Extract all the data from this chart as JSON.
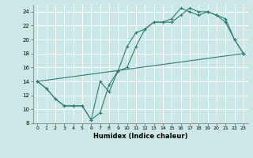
{
  "xlabel": "Humidex (Indice chaleur)",
  "background_color": "#cce8e6",
  "grid_color": "#ffffff",
  "line_color": "#2e7d72",
  "xlim": [
    -0.5,
    23.5
  ],
  "ylim": [
    8,
    25
  ],
  "xticks": [
    0,
    1,
    2,
    3,
    4,
    5,
    6,
    7,
    8,
    9,
    10,
    11,
    12,
    13,
    14,
    15,
    16,
    17,
    18,
    19,
    20,
    21,
    22,
    23
  ],
  "yticks": [
    8,
    10,
    12,
    14,
    16,
    18,
    20,
    22,
    24
  ],
  "line1_x": [
    0,
    1,
    2,
    3,
    4,
    5,
    6,
    7,
    8,
    9,
    10,
    11,
    12,
    13,
    14,
    15,
    16,
    17,
    18,
    19,
    20,
    21,
    22,
    23
  ],
  "line1_y": [
    14,
    13,
    11.5,
    10.5,
    10.5,
    10.5,
    8.5,
    14,
    12.5,
    15.5,
    16,
    19,
    21.5,
    22.5,
    22.5,
    23,
    24.5,
    24,
    23.5,
    24,
    23.5,
    22.5,
    20,
    18
  ],
  "line2_x": [
    0,
    1,
    2,
    3,
    4,
    5,
    6,
    7,
    8,
    9,
    10,
    11,
    12,
    13,
    14,
    15,
    16,
    17,
    18,
    19,
    20,
    21,
    22,
    23
  ],
  "line2_y": [
    14,
    13,
    11.5,
    10.5,
    10.5,
    10.5,
    8.5,
    9.5,
    13.5,
    15.5,
    19,
    21,
    21.5,
    22.5,
    22.5,
    22.5,
    23.5,
    24.5,
    24,
    24,
    23.5,
    23,
    20,
    18
  ],
  "line3_x": [
    0,
    23
  ],
  "line3_y": [
    14,
    18
  ]
}
